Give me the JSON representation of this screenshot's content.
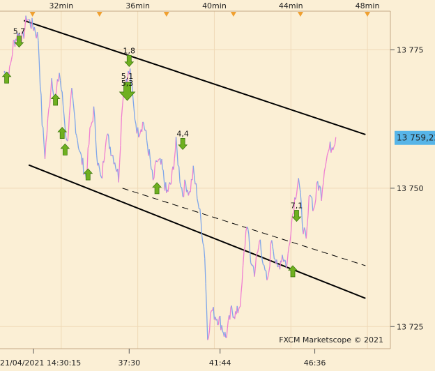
{
  "chart_data": {
    "type": "line",
    "title": "",
    "watermark": "FXCM Marketscope © 2021",
    "top_axis_ticks": [
      "32min",
      "36min",
      "40min",
      "44min",
      "48min"
    ],
    "bottom_axis_ticks": [
      "21/04/2021 14:30:15",
      "37:30",
      "41:44",
      "46:36"
    ],
    "y_ticks": [
      13775,
      13750,
      13725
    ],
    "y_tick_labels": [
      "13 775",
      "13 750",
      "13 725"
    ],
    "ylim": [
      13721,
      13782
    ],
    "current_price": 13759.22,
    "current_price_label": "13 759,22",
    "grid": true,
    "colors": {
      "background": "#fbefd5",
      "grid": "#efd9b6",
      "price_up": "#f07fd2",
      "price_down": "#7ea6ea",
      "channel": "#000000",
      "signal": "#6fb020",
      "marker": "#f0a030",
      "price_box": "#57b5e8"
    },
    "channel_lines": [
      {
        "style": "solid",
        "from": {
          "t": 30.05,
          "price": 13780.3
        },
        "to": {
          "t": 47.9,
          "price": 13759.7
        }
      },
      {
        "style": "solid",
        "from": {
          "t": 30.3,
          "price": 13754.2
        },
        "to": {
          "t": 47.9,
          "price": 13730.1
        }
      },
      {
        "style": "dashed",
        "from": {
          "t": 35.2,
          "price": 13750.0
        },
        "to": {
          "t": 47.9,
          "price": 13736.0
        }
      }
    ],
    "price_series": [
      {
        "t": 29.0,
        "price": 13771
      },
      {
        "t": 29.3,
        "price": 13771
      },
      {
        "t": 29.5,
        "price": 13776
      },
      {
        "t": 29.75,
        "price": 13778
      },
      {
        "t": 30.0,
        "price": 13777
      },
      {
        "t": 30.2,
        "price": 13781
      },
      {
        "t": 30.35,
        "price": 13780
      },
      {
        "t": 30.6,
        "price": 13779
      },
      {
        "t": 30.8,
        "price": 13777
      },
      {
        "t": 31.0,
        "price": 13762
      },
      {
        "t": 31.15,
        "price": 13756
      },
      {
        "t": 31.3,
        "price": 13762
      },
      {
        "t": 31.5,
        "price": 13770
      },
      {
        "t": 31.7,
        "price": 13766
      },
      {
        "t": 31.9,
        "price": 13771
      },
      {
        "t": 32.1,
        "price": 13765
      },
      {
        "t": 32.3,
        "price": 13758
      },
      {
        "t": 32.55,
        "price": 13767
      },
      {
        "t": 32.8,
        "price": 13760
      },
      {
        "t": 33.0,
        "price": 13756
      },
      {
        "t": 33.3,
        "price": 13752
      },
      {
        "t": 33.5,
        "price": 13760
      },
      {
        "t": 33.7,
        "price": 13764
      },
      {
        "t": 33.9,
        "price": 13755
      },
      {
        "t": 34.1,
        "price": 13751
      },
      {
        "t": 34.35,
        "price": 13760
      },
      {
        "t": 34.6,
        "price": 13757
      },
      {
        "t": 34.8,
        "price": 13755
      },
      {
        "t": 35.0,
        "price": 13752
      },
      {
        "t": 35.2,
        "price": 13766
      },
      {
        "t": 35.4,
        "price": 13770
      },
      {
        "t": 35.6,
        "price": 13771
      },
      {
        "t": 35.8,
        "price": 13764
      },
      {
        "t": 36.0,
        "price": 13760
      },
      {
        "t": 36.3,
        "price": 13762
      },
      {
        "t": 36.6,
        "price": 13756
      },
      {
        "t": 36.8,
        "price": 13751
      },
      {
        "t": 37.0,
        "price": 13755
      },
      {
        "t": 37.25,
        "price": 13754
      },
      {
        "t": 37.5,
        "price": 13749
      },
      {
        "t": 37.75,
        "price": 13751
      },
      {
        "t": 38.0,
        "price": 13758
      },
      {
        "t": 38.2,
        "price": 13752
      },
      {
        "t": 38.35,
        "price": 13749
      },
      {
        "t": 38.5,
        "price": 13751
      },
      {
        "t": 38.7,
        "price": 13749
      },
      {
        "t": 38.9,
        "price": 13753
      },
      {
        "t": 39.1,
        "price": 13749
      },
      {
        "t": 39.3,
        "price": 13744
      },
      {
        "t": 39.5,
        "price": 13738
      },
      {
        "t": 39.65,
        "price": 13723
      },
      {
        "t": 39.85,
        "price": 13728
      },
      {
        "t": 40.05,
        "price": 13727
      },
      {
        "t": 40.3,
        "price": 13726
      },
      {
        "t": 40.6,
        "price": 13723
      },
      {
        "t": 40.9,
        "price": 13728
      },
      {
        "t": 41.15,
        "price": 13727
      },
      {
        "t": 41.4,
        "price": 13730
      },
      {
        "t": 41.55,
        "price": 13738
      },
      {
        "t": 41.7,
        "price": 13744
      },
      {
        "t": 41.9,
        "price": 13737
      },
      {
        "t": 42.1,
        "price": 13735
      },
      {
        "t": 42.4,
        "price": 13741
      },
      {
        "t": 42.6,
        "price": 13735
      },
      {
        "t": 42.8,
        "price": 13733
      },
      {
        "t": 43.0,
        "price": 13741
      },
      {
        "t": 43.3,
        "price": 13735
      },
      {
        "t": 43.55,
        "price": 13738
      },
      {
        "t": 43.8,
        "price": 13736
      },
      {
        "t": 44.0,
        "price": 13743
      },
      {
        "t": 44.2,
        "price": 13748
      },
      {
        "t": 44.4,
        "price": 13752
      },
      {
        "t": 44.6,
        "price": 13744
      },
      {
        "t": 44.8,
        "price": 13740
      },
      {
        "t": 45.0,
        "price": 13750
      },
      {
        "t": 45.2,
        "price": 13746
      },
      {
        "t": 45.4,
        "price": 13751
      },
      {
        "t": 45.6,
        "price": 13749
      },
      {
        "t": 45.8,
        "price": 13755
      },
      {
        "t": 46.0,
        "price": 13757
      },
      {
        "t": 46.2,
        "price": 13758
      },
      {
        "t": 46.35,
        "price": 13759.22
      }
    ],
    "signals": [
      {
        "t": 29.15,
        "price": 13770,
        "dir": "up",
        "size": "small",
        "label": ""
      },
      {
        "t": 29.8,
        "price": 13776.5,
        "dir": "down",
        "size": "small",
        "label": "5,7"
      },
      {
        "t": 31.7,
        "price": 13766,
        "dir": "up",
        "size": "small",
        "label": ""
      },
      {
        "t": 32.05,
        "price": 13760,
        "dir": "up",
        "size": "small",
        "label": ""
      },
      {
        "t": 32.2,
        "price": 13757,
        "dir": "up",
        "size": "small",
        "label": ""
      },
      {
        "t": 33.4,
        "price": 13752.5,
        "dir": "up",
        "size": "small",
        "label": ""
      },
      {
        "t": 35.55,
        "price": 13773,
        "dir": "down",
        "size": "small",
        "label": "1,8"
      },
      {
        "t": 35.45,
        "price": 13767.5,
        "dir": "down",
        "size": "large",
        "label": "5,1"
      },
      {
        "t": 35.45,
        "price": 13767.5,
        "dir": "down",
        "size": "none",
        "label": "5,3"
      },
      {
        "t": 37.0,
        "price": 13750,
        "dir": "up",
        "size": "small",
        "label": ""
      },
      {
        "t": 38.35,
        "price": 13758,
        "dir": "down",
        "size": "small",
        "label": "4,4"
      },
      {
        "t": 44.1,
        "price": 13735,
        "dir": "up",
        "size": "small",
        "label": ""
      },
      {
        "t": 44.3,
        "price": 13745,
        "dir": "down",
        "size": "small",
        "label": "7,1"
      }
    ],
    "top_markers_t": [
      30.5,
      34.0,
      37.5,
      41.0,
      44.5,
      48.0
    ]
  }
}
